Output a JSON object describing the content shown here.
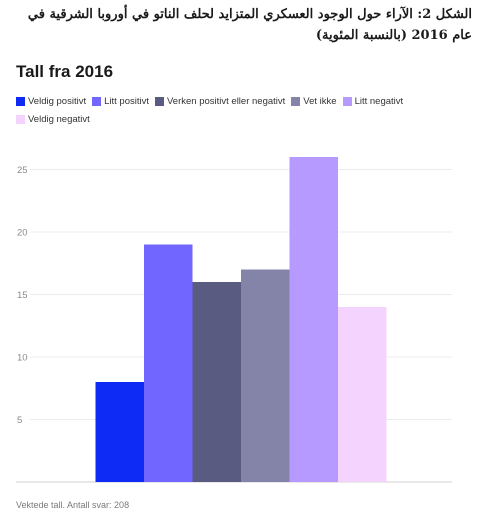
{
  "caption": "الشكل 2: الآراء حول الوجود العسكري المتزايد لحلف الناتو في أوروبا الشرقية في عام 2016 (بالنسبة المئوية)",
  "chart_data": {
    "type": "bar",
    "title": "Tall fra 2016",
    "xlabel": "",
    "ylabel": "",
    "categories": [
      "Veldig positivt",
      "Litt positivt",
      "Verken positivt eller negativt",
      "Vet ikke",
      "Litt negativt",
      "Veldig negativt"
    ],
    "values": [
      8,
      19,
      16,
      17,
      26,
      14
    ],
    "colors": [
      "#0d2bf5",
      "#7166ff",
      "#5a5b80",
      "#8384a8",
      "#b69aff",
      "#f5d3ff"
    ],
    "ylim": [
      0,
      28
    ],
    "yticks": [
      5,
      10,
      15,
      20,
      25
    ],
    "grid": true,
    "legend_position": "top-left"
  },
  "footer": "Vektede tall. Antall svar: 208"
}
